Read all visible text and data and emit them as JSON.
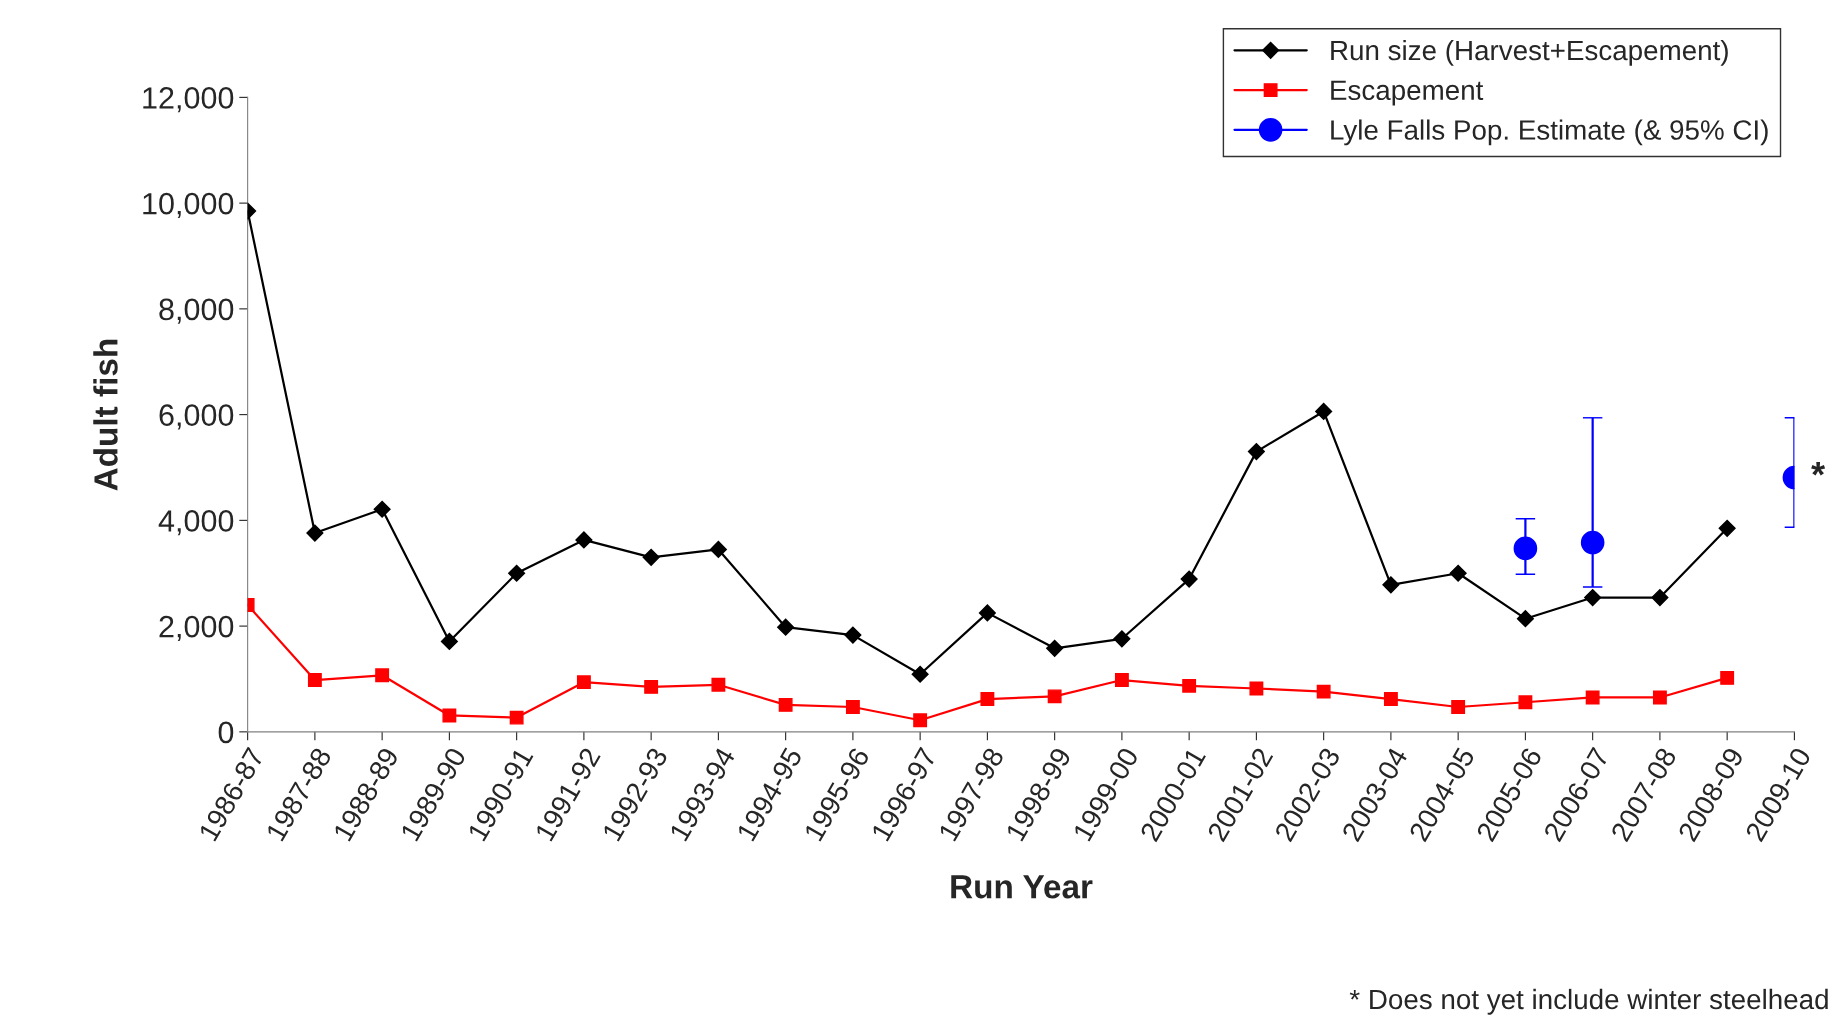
{
  "chart_data": {
    "type": "line",
    "xlabel": "Run Year",
    "ylabel": "Adult fish",
    "categories": [
      "1986-87",
      "1987-88",
      "1988-89",
      "1989-90",
      "1990-91",
      "1991-92",
      "1992-93",
      "1993-94",
      "1994-95",
      "1995-96",
      "1996-97",
      "1997-98",
      "1998-99",
      "1999-00",
      "2000-01",
      "2001-02",
      "2002-03",
      "2003-04",
      "2004-05",
      "2005-06",
      "2006-07",
      "2007-08",
      "2008-09",
      "2009-10"
    ],
    "series": [
      {
        "name": "Run size (Harvest+Escapement)",
        "color": "#000000",
        "marker": "diamond",
        "values": [
          9850,
          3760,
          4210,
          1710,
          3000,
          3630,
          3300,
          3450,
          1980,
          1830,
          1090,
          2250,
          1580,
          1760,
          2890,
          5300,
          6060,
          2780,
          3000,
          2140,
          2540,
          2540,
          3850,
          null
        ]
      },
      {
        "name": "Escapement",
        "color": "#ff0000",
        "marker": "square",
        "values": [
          2400,
          980,
          1070,
          310,
          270,
          940,
          850,
          890,
          510,
          470,
          220,
          620,
          670,
          980,
          870,
          820,
          760,
          620,
          470,
          560,
          650,
          650,
          1020,
          null
        ]
      },
      {
        "name": "Lyle Falls Pop. Estimate (& 95% CI)",
        "color": "#0000ff",
        "marker": "circle",
        "type": "scatter",
        "values": [
          null,
          null,
          null,
          null,
          null,
          null,
          null,
          null,
          null,
          null,
          null,
          null,
          null,
          null,
          null,
          null,
          null,
          null,
          null,
          3470,
          3580,
          null,
          null,
          4810
        ],
        "errors": [
          null,
          null,
          null,
          null,
          null,
          null,
          null,
          null,
          null,
          null,
          null,
          null,
          null,
          null,
          null,
          null,
          null,
          null,
          null,
          [
            2980,
            4030
          ],
          [
            2740,
            5940
          ],
          null,
          null,
          [
            3870,
            5940
          ]
        ]
      }
    ],
    "ylim": [
      0,
      12000
    ],
    "yticks": [
      {
        "value": 0,
        "label": "0"
      },
      {
        "value": 2000,
        "label": "2,000"
      },
      {
        "value": 4000,
        "label": "4,000"
      },
      {
        "value": 6000,
        "label": "6,000"
      },
      {
        "value": 8000,
        "label": "8,000"
      },
      {
        "value": 10000,
        "label": "10,000"
      },
      {
        "value": 12000,
        "label": "12,000"
      }
    ],
    "grid": false,
    "legend": "top right",
    "annotations": [
      {
        "text": "*",
        "x": "2009-10",
        "y": 4810
      },
      "* Does not yet include winter steelhead"
    ]
  }
}
